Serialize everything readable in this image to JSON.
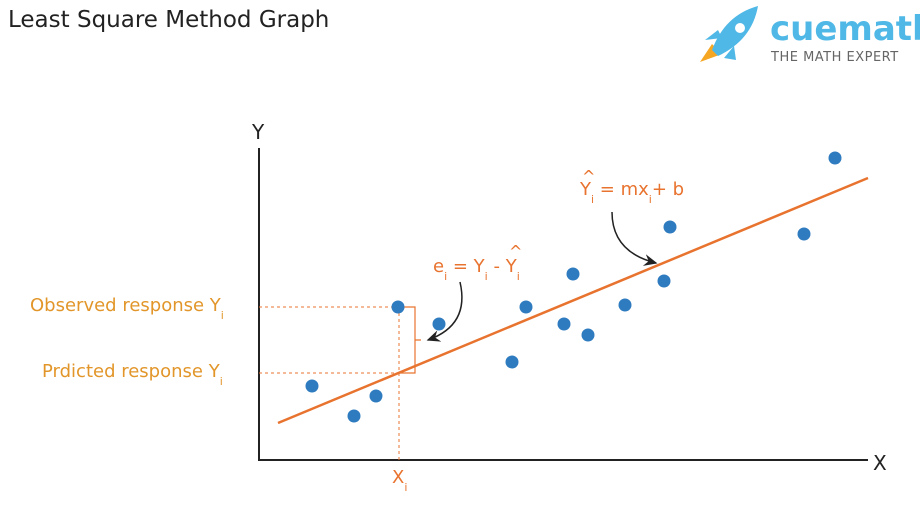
{
  "header": {
    "title": "Least Square Method Graph",
    "brand": "cuemath",
    "tagline": "THE MATH EXPERT"
  },
  "axes": {
    "y": "Y",
    "x": "X",
    "xi": {
      "text": "X",
      "sub": "i"
    }
  },
  "labels": {
    "observed": {
      "text": "Observed response Y",
      "sub": "i"
    },
    "predicted": {
      "text": "Prdicted response Y",
      "sub": "i"
    }
  },
  "equations": {
    "line": {
      "hat": "^",
      "y": "Y",
      "sub1": "i",
      "mid": " = mx",
      "sub2": "i",
      "end": "+ b"
    },
    "error": {
      "e": "e",
      "sub1": "i",
      "mid": " = Y",
      "sub2": "i",
      "minus": " - ",
      "hat": "^",
      "y": "Y",
      "sub3": "i"
    }
  }
}
